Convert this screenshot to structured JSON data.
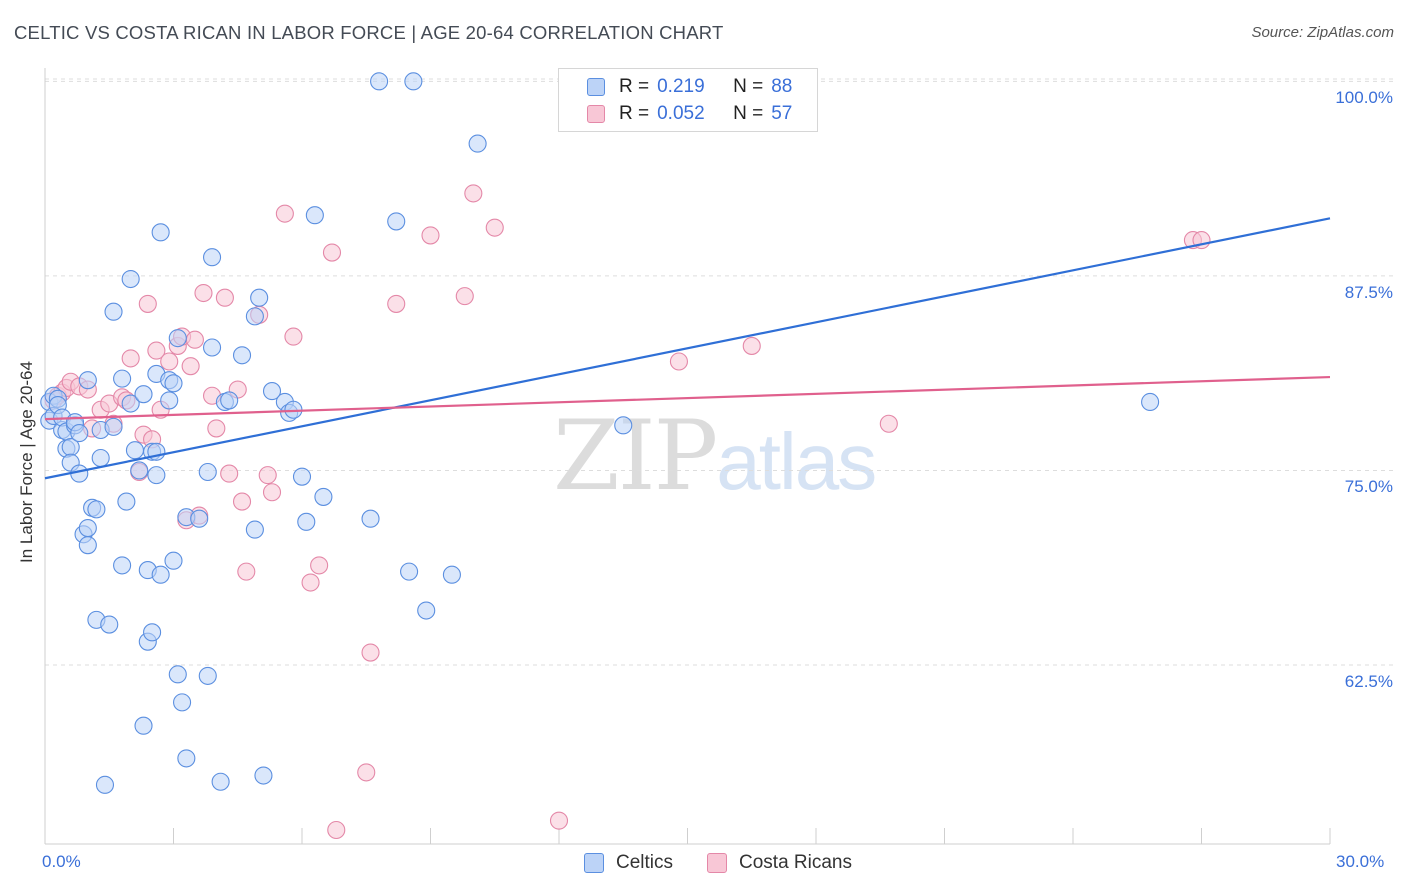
{
  "title": "CELTIC VS COSTA RICAN IN LABOR FORCE | AGE 20-64 CORRELATION CHART",
  "source": "Source: ZipAtlas.com",
  "watermark": {
    "zip": "ZIP",
    "atlas": "atlas"
  },
  "legend": {
    "rows": [
      {
        "r_label": "R =",
        "r_value": "0.219",
        "n_label": "N =",
        "n_value": "88",
        "color": "#5b8fe0"
      },
      {
        "r_label": "R =",
        "r_value": "0.052",
        "n_label": "N =",
        "n_value": "57",
        "color": "#e488a8"
      }
    ]
  },
  "colors": {
    "celtics": "#5b8fe0",
    "celtics_fill": "#bcd3f7",
    "costa_ricans": "#e488a8",
    "costa_ricans_fill": "#f8c7d6",
    "axis_text": "#3a6fd8",
    "grid": "#dddddd"
  },
  "chart_data": {
    "type": "scatter",
    "title": "CELTIC VS COSTA RICAN IN LABOR FORCE | AGE 20-64 CORRELATION CHART",
    "xlabel": "",
    "ylabel": "In Labor Force | Age 20-64",
    "x_tick_labels": [
      "0.0%",
      "30.0%"
    ],
    "y_tick_labels": [
      "100.0%",
      "87.5%",
      "75.0%",
      "62.5%"
    ],
    "y_ticks": [
      100.0,
      87.5,
      75.0,
      62.5
    ],
    "xlim": [
      0,
      30
    ],
    "ylim": [
      51.0,
      101.5
    ],
    "grid": true,
    "legend_position": "bottom-center",
    "series": [
      {
        "name": "Celtics",
        "color": "#5b8fe0",
        "trend": {
          "x": [
            0,
            30
          ],
          "y": [
            74.5,
            91.2
          ]
        },
        "points": [
          [
            0.1,
            78.2
          ],
          [
            0.1,
            79.4
          ],
          [
            0.2,
            79.8
          ],
          [
            0.2,
            78.5
          ],
          [
            0.3,
            79.6
          ],
          [
            0.3,
            79.2
          ],
          [
            0.4,
            77.6
          ],
          [
            0.4,
            78.4
          ],
          [
            0.5,
            77.5
          ],
          [
            0.5,
            76.4
          ],
          [
            0.6,
            76.5
          ],
          [
            0.6,
            75.5
          ],
          [
            0.7,
            77.9
          ],
          [
            0.7,
            78.1
          ],
          [
            0.8,
            74.8
          ],
          [
            0.8,
            77.4
          ],
          [
            0.9,
            70.9
          ],
          [
            1.0,
            80.8
          ],
          [
            1.0,
            71.3
          ],
          [
            1.0,
            70.2
          ],
          [
            1.1,
            72.6
          ],
          [
            1.2,
            72.5
          ],
          [
            1.2,
            65.4
          ],
          [
            1.3,
            75.8
          ],
          [
            1.3,
            77.6
          ],
          [
            1.4,
            54.8
          ],
          [
            1.5,
            65.1
          ],
          [
            1.6,
            85.2
          ],
          [
            1.6,
            77.8
          ],
          [
            1.8,
            80.9
          ],
          [
            1.8,
            68.9
          ],
          [
            1.9,
            73.0
          ],
          [
            2.0,
            87.3
          ],
          [
            2.0,
            79.3
          ],
          [
            2.1,
            76.3
          ],
          [
            2.2,
            75.0
          ],
          [
            2.3,
            79.9
          ],
          [
            2.3,
            58.6
          ],
          [
            2.4,
            68.6
          ],
          [
            2.4,
            64.0
          ],
          [
            2.5,
            64.6
          ],
          [
            2.5,
            76.2
          ],
          [
            2.6,
            76.2
          ],
          [
            2.6,
            81.2
          ],
          [
            2.6,
            74.7
          ],
          [
            2.7,
            68.3
          ],
          [
            2.7,
            90.3
          ],
          [
            2.9,
            80.8
          ],
          [
            2.9,
            79.5
          ],
          [
            3.0,
            80.6
          ],
          [
            3.0,
            69.2
          ],
          [
            3.1,
            83.5
          ],
          [
            3.1,
            61.9
          ],
          [
            3.2,
            60.1
          ],
          [
            3.3,
            56.5
          ],
          [
            3.3,
            72.0
          ],
          [
            3.6,
            71.9
          ],
          [
            3.8,
            74.9
          ],
          [
            3.8,
            61.8
          ],
          [
            3.9,
            88.7
          ],
          [
            3.9,
            82.9
          ],
          [
            4.1,
            55.0
          ],
          [
            4.2,
            79.4
          ],
          [
            4.3,
            79.5
          ],
          [
            4.6,
            82.4
          ],
          [
            4.9,
            84.9
          ],
          [
            4.9,
            71.2
          ],
          [
            5.0,
            86.1
          ],
          [
            5.1,
            55.4
          ],
          [
            5.3,
            80.1
          ],
          [
            5.6,
            79.4
          ],
          [
            5.7,
            78.7
          ],
          [
            5.8,
            78.9
          ],
          [
            6.0,
            74.6
          ],
          [
            6.1,
            71.7
          ],
          [
            6.3,
            91.4
          ],
          [
            6.5,
            73.3
          ],
          [
            7.6,
            71.9
          ],
          [
            7.8,
            100.0
          ],
          [
            8.2,
            91.0
          ],
          [
            8.5,
            68.5
          ],
          [
            8.6,
            100.0
          ],
          [
            8.9,
            66.0
          ],
          [
            9.5,
            68.3
          ],
          [
            10.1,
            96.0
          ],
          [
            12.4,
            100.0
          ],
          [
            13.5,
            77.9
          ],
          [
            25.8,
            79.4
          ]
        ]
      },
      {
        "name": "Costa Ricans",
        "color": "#e488a8",
        "trend": {
          "x": [
            0,
            30
          ],
          "y": [
            78.3,
            81.0
          ]
        },
        "points": [
          [
            0.2,
            79.5
          ],
          [
            0.3,
            79.8
          ],
          [
            0.4,
            80.0
          ],
          [
            0.5,
            80.3
          ],
          [
            0.6,
            80.7
          ],
          [
            0.8,
            80.4
          ],
          [
            1.0,
            80.2
          ],
          [
            1.1,
            77.7
          ],
          [
            1.3,
            78.9
          ],
          [
            1.5,
            79.3
          ],
          [
            1.6,
            78.0
          ],
          [
            1.8,
            79.7
          ],
          [
            1.9,
            79.5
          ],
          [
            2.0,
            82.2
          ],
          [
            2.2,
            74.9
          ],
          [
            2.3,
            77.3
          ],
          [
            2.4,
            85.7
          ],
          [
            2.5,
            77.0
          ],
          [
            2.6,
            82.7
          ],
          [
            2.7,
            78.9
          ],
          [
            2.9,
            82.0
          ],
          [
            3.1,
            83.0
          ],
          [
            3.2,
            83.6
          ],
          [
            3.3,
            71.8
          ],
          [
            3.4,
            81.7
          ],
          [
            3.5,
            83.4
          ],
          [
            3.6,
            72.1
          ],
          [
            3.7,
            86.4
          ],
          [
            3.9,
            79.8
          ],
          [
            4.0,
            77.7
          ],
          [
            4.2,
            86.1
          ],
          [
            4.3,
            74.8
          ],
          [
            4.5,
            80.2
          ],
          [
            4.6,
            73.0
          ],
          [
            4.7,
            68.5
          ],
          [
            5.0,
            85.0
          ],
          [
            5.2,
            74.7
          ],
          [
            5.3,
            73.6
          ],
          [
            5.6,
            91.5
          ],
          [
            5.8,
            83.6
          ],
          [
            6.2,
            67.8
          ],
          [
            6.4,
            68.9
          ],
          [
            6.7,
            89.0
          ],
          [
            6.8,
            51.9
          ],
          [
            7.5,
            55.6
          ],
          [
            7.6,
            63.3
          ],
          [
            8.2,
            85.7
          ],
          [
            9.0,
            90.1
          ],
          [
            9.8,
            86.2
          ],
          [
            10.0,
            92.8
          ],
          [
            10.5,
            90.6
          ],
          [
            12.0,
            52.5
          ],
          [
            14.8,
            82.0
          ],
          [
            16.5,
            83.0
          ],
          [
            19.7,
            78.0
          ],
          [
            26.8,
            89.8
          ],
          [
            27.0,
            89.8
          ]
        ]
      }
    ]
  },
  "bottom_legend": {
    "items": [
      "Celtics",
      "Costa Ricans"
    ]
  }
}
